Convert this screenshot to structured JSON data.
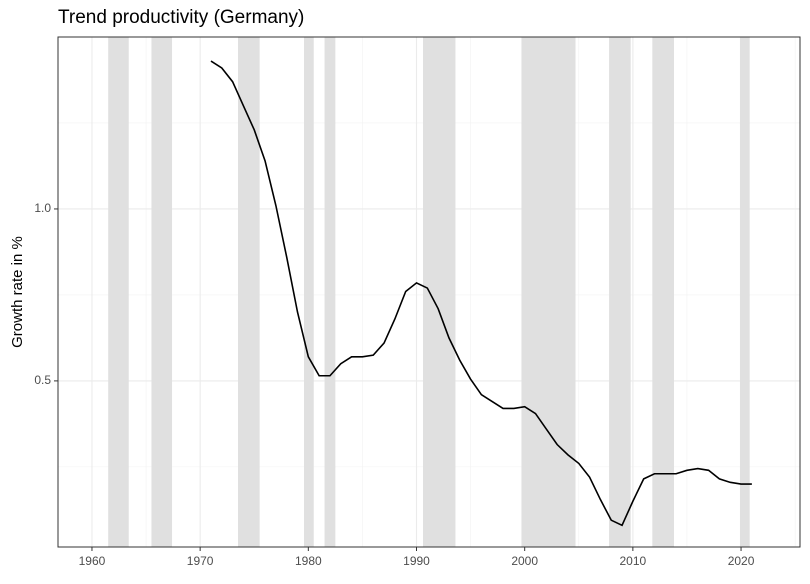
{
  "chart_data": {
    "type": "line",
    "title": "Trend productivity (Germany)",
    "y_label": "Growth rate in %",
    "x": [
      1971,
      1972,
      1973,
      1974,
      1975,
      1976,
      1977,
      1978,
      1979,
      1980,
      1981,
      1982,
      1983,
      1984,
      1985,
      1986,
      1987,
      1988,
      1989,
      1990,
      1991,
      1992,
      1993,
      1994,
      1995,
      1996,
      1997,
      1998,
      1999,
      2000,
      2001,
      2002,
      2003,
      2004,
      2005,
      2006,
      2007,
      2008,
      2009,
      2010,
      2011,
      2012,
      2013,
      2014,
      2015,
      2016,
      2017,
      2018,
      2019,
      2020,
      2021
    ],
    "series": [
      {
        "color": "#000000",
        "values": [
          1.43,
          1.41,
          1.37,
          1.3,
          1.23,
          1.14,
          1.01,
          0.86,
          0.7,
          0.57,
          0.515,
          0.515,
          0.55,
          0.57,
          0.57,
          0.575,
          0.61,
          0.68,
          0.76,
          0.785,
          0.77,
          0.71,
          0.625,
          0.56,
          0.505,
          0.46,
          0.44,
          0.42,
          0.42,
          0.425,
          0.405,
          0.36,
          0.315,
          0.285,
          0.26,
          0.22,
          0.155,
          0.095,
          0.08,
          0.15,
          0.215,
          0.23,
          0.23,
          0.23,
          0.24,
          0.245,
          0.24,
          0.215,
          0.205,
          0.2,
          0.2
        ]
      }
    ],
    "shaded_periods": [
      [
        1961.5,
        1963.4
      ],
      [
        1965.5,
        1967.4
      ],
      [
        1973.5,
        1975.5
      ],
      [
        1979.6,
        1980.5
      ],
      [
        1981.5,
        1982.5
      ],
      [
        1990.6,
        1993.6
      ],
      [
        1999.7,
        2004.7
      ],
      [
        2007.8,
        2009.8
      ],
      [
        2011.8,
        2013.8
      ],
      [
        2019.9,
        2020.8
      ]
    ],
    "shade_color": "#e0e0e0",
    "xlim": [
      1956.86,
      2025.45
    ],
    "xticks": [
      1960,
      1970,
      1980,
      1990,
      2000,
      2010,
      2020
    ],
    "x_minor_grid": [
      1965,
      1975,
      1985,
      1995,
      2005,
      2015,
      2025
    ],
    "ylim": [
      0.017,
      1.5
    ],
    "yticks": [
      {
        "value": 0.5,
        "label": "0.5"
      },
      {
        "value": 1.0,
        "label": "1.0"
      }
    ],
    "y_minor_grid": [
      0.25,
      0.75,
      1.25
    ],
    "grid": true
  }
}
